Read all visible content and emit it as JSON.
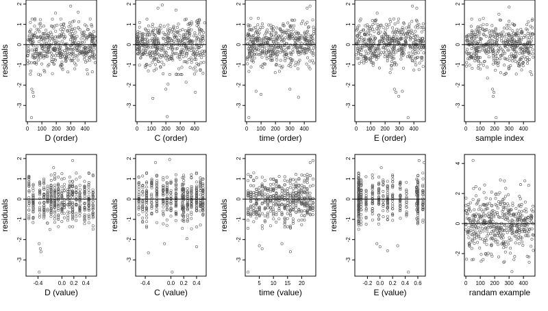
{
  "chart_data": [
    {
      "type": "scatter",
      "xlabel": "D (order)",
      "ylabel": "residuals",
      "xlim": [
        -10,
        480
      ],
      "ylim": [
        -3.8,
        2.2
      ],
      "xticks": [
        0,
        100,
        200,
        300,
        400
      ],
      "yticks": [
        -3,
        -2,
        -1,
        0,
        1,
        2
      ],
      "hline": 0,
      "n": 460,
      "seed": 11,
      "outliers": [
        [
          30,
          -2.2
        ],
        [
          38,
          -2.35
        ],
        [
          42,
          -2.55
        ],
        [
          28,
          -3.6
        ],
        [
          195,
          1.55
        ],
        [
          300,
          1.9
        ],
        [
          352,
          1.6
        ],
        [
          90,
          -1.5
        ],
        [
          120,
          -1.35
        ],
        [
          418,
          -1.45
        ]
      ]
    },
    {
      "type": "scatter",
      "xlabel": "C (order)",
      "ylabel": "residuals",
      "xlim": [
        -10,
        480
      ],
      "ylim": [
        -3.8,
        2.2
      ],
      "xticks": [
        0,
        100,
        200,
        300,
        400
      ],
      "yticks": [
        -3,
        -2,
        -1,
        0,
        1,
        2
      ],
      "hline": 0,
      "n": 460,
      "seed": 23,
      "outliers": [
        [
          210,
          -3.55
        ],
        [
          200,
          -2.2
        ],
        [
          215,
          -1.95
        ],
        [
          340,
          -1.85
        ],
        [
          405,
          -2.35
        ],
        [
          145,
          1.8
        ],
        [
          175,
          1.95
        ],
        [
          270,
          1.7
        ],
        [
          110,
          -2.65
        ]
      ]
    },
    {
      "type": "scatter",
      "xlabel": "time (order)",
      "ylabel": "residuals",
      "xlim": [
        -10,
        480
      ],
      "ylim": [
        -3.8,
        2.2
      ],
      "xticks": [
        0,
        100,
        200,
        300,
        400
      ],
      "yticks": [
        -3,
        -2,
        -1,
        0,
        1,
        2
      ],
      "hline": 0,
      "n": 460,
      "seed": 37,
      "outliers": [
        [
          15,
          -3.6
        ],
        [
          65,
          -2.3
        ],
        [
          100,
          -2.45
        ],
        [
          300,
          -2.2
        ],
        [
          360,
          -2.6
        ],
        [
          420,
          1.8
        ],
        [
          440,
          1.9
        ],
        [
          30,
          1.3
        ]
      ]
    },
    {
      "type": "scatter",
      "xlabel": "E (order)",
      "ylabel": "residuals",
      "xlim": [
        -10,
        480
      ],
      "ylim": [
        -3.8,
        2.2
      ],
      "xticks": [
        0,
        100,
        200,
        300,
        400
      ],
      "yticks": [
        -3,
        -2,
        -1,
        0,
        1,
        2
      ],
      "hline": 0,
      "n": 460,
      "seed": 41,
      "outliers": [
        [
          265,
          -2.2
        ],
        [
          275,
          -2.35
        ],
        [
          295,
          -2.55
        ],
        [
          320,
          -2.3
        ],
        [
          360,
          -3.6
        ],
        [
          145,
          1.55
        ],
        [
          390,
          1.9
        ],
        [
          420,
          1.8
        ]
      ]
    },
    {
      "type": "scatter",
      "xlabel": "sample index",
      "ylabel": "residuals",
      "xlim": [
        -10,
        480
      ],
      "ylim": [
        -3.8,
        2.2
      ],
      "xticks": [
        0,
        100,
        200,
        300,
        400
      ],
      "yticks": [
        -3,
        -2,
        -1,
        0,
        1,
        2
      ],
      "hline": 0,
      "n": 460,
      "seed": 53,
      "outliers": [
        [
          185,
          -2.2
        ],
        [
          195,
          -2.35
        ],
        [
          190,
          -2.55
        ],
        [
          210,
          -3.6
        ],
        [
          300,
          1.85
        ],
        [
          230,
          1.5
        ],
        [
          150,
          -1.65
        ]
      ]
    },
    {
      "type": "scatter",
      "xlabel": "D (value)",
      "ylabel": "residuals",
      "xlim": [
        -0.6,
        0.58
      ],
      "ylim": [
        -3.8,
        2.2
      ],
      "xticks": [
        -0.4,
        0.0,
        0.2,
        0.4
      ],
      "xticklabels": [
        "-0.4",
        "0.0",
        "0.2",
        "0.4"
      ],
      "yticks": [
        -3,
        -2,
        -1,
        0,
        1,
        2
      ],
      "hline": 0,
      "n": 460,
      "seed": 61,
      "columns": [
        -0.55,
        -0.48,
        -0.37,
        -0.3,
        -0.24,
        -0.18,
        -0.12,
        -0.06,
        0.0,
        0.04,
        0.1,
        0.13,
        0.18,
        0.24,
        0.3,
        0.38,
        0.45,
        0.52
      ],
      "outliers": [
        [
          -0.38,
          -2.2
        ],
        [
          -0.36,
          -2.45
        ],
        [
          -0.35,
          -2.6
        ],
        [
          -0.38,
          -3.6
        ],
        [
          0.18,
          1.9
        ],
        [
          -0.14,
          1.55
        ],
        [
          -0.2,
          -1.5
        ]
      ]
    },
    {
      "type": "scatter",
      "xlabel": "C (value)",
      "ylabel": "residuals",
      "xlim": [
        -0.55,
        0.55
      ],
      "ylim": [
        -3.8,
        2.2
      ],
      "xticks": [
        -0.4,
        0.0,
        0.2,
        0.4
      ],
      "xticklabels": [
        "-0.4",
        "0.0",
        "0.2",
        "0.4"
      ],
      "yticks": [
        -3,
        -2,
        -1,
        0,
        1,
        2
      ],
      "hline": 0,
      "n": 460,
      "seed": 71,
      "columns": [
        -0.5,
        -0.44,
        -0.38,
        -0.3,
        -0.22,
        -0.12,
        -0.06,
        0.0,
        0.08,
        0.18,
        0.2,
        0.26,
        0.32,
        0.4,
        0.46,
        0.5
      ],
      "outliers": [
        [
          0.02,
          -3.6
        ],
        [
          -0.1,
          -2.2
        ],
        [
          0.25,
          -1.95
        ],
        [
          0.4,
          -2.35
        ],
        [
          -0.24,
          1.8
        ],
        [
          -0.02,
          1.95
        ],
        [
          -0.35,
          -2.65
        ]
      ]
    },
    {
      "type": "scatter",
      "xlabel": "time (value)",
      "ylabel": "residuals",
      "xlim": [
        0,
        25
      ],
      "ylim": [
        -3.8,
        2.2
      ],
      "xticks": [
        5,
        10,
        15,
        20
      ],
      "yticks": [
        -3,
        -2,
        -1,
        0,
        1,
        2
      ],
      "hline": 0,
      "n": 460,
      "seed": 83,
      "columns": [
        1,
        2,
        3,
        4,
        5,
        6,
        7,
        8,
        9,
        10,
        11,
        12,
        13,
        14,
        15,
        16,
        17,
        18,
        19,
        20,
        21,
        22,
        23,
        24
      ],
      "outliers": [
        [
          1,
          -3.6
        ],
        [
          5,
          -2.3
        ],
        [
          6,
          -2.45
        ],
        [
          13,
          -2.2
        ],
        [
          16,
          -2.6
        ],
        [
          23,
          1.8
        ],
        [
          24,
          1.9
        ],
        [
          3,
          1.3
        ]
      ]
    },
    {
      "type": "scatter",
      "xlabel": "E (value)",
      "ylabel": "residuals",
      "xlim": [
        -0.4,
        0.72
      ],
      "ylim": [
        -3.8,
        2.2
      ],
      "xticks": [
        -0.2,
        0.0,
        0.2,
        0.4,
        0.6
      ],
      "xticklabels": [
        "-0.2",
        "0.0",
        "0.2",
        "0.4",
        "0.6"
      ],
      "yticks": [
        -3,
        -2,
        -1,
        0,
        1,
        2
      ],
      "hline": 0,
      "n": 460,
      "seed": 97,
      "columns": [
        -0.34,
        -0.34,
        -0.34,
        -0.34,
        -0.34,
        -0.3,
        -0.22,
        -0.12,
        -0.02,
        0.05,
        0.12,
        0.2,
        0.32,
        0.42,
        0.58,
        0.6,
        0.6,
        0.68
      ],
      "outliers": [
        [
          -0.05,
          -2.2
        ],
        [
          0.0,
          -2.35
        ],
        [
          0.12,
          -2.55
        ],
        [
          0.28,
          -2.3
        ],
        [
          0.45,
          -3.6
        ],
        [
          0.02,
          1.55
        ],
        [
          0.62,
          1.9
        ],
        [
          0.7,
          1.8
        ]
      ]
    },
    {
      "type": "scatter",
      "xlabel": "randam example",
      "ylabel": "",
      "xlim": [
        -10,
        480
      ],
      "ylim": [
        -3.5,
        4.6
      ],
      "xticks": [
        0,
        100,
        200,
        300,
        400
      ],
      "yticks": [
        -2,
        0,
        2,
        4
      ],
      "hline": 0,
      "n": 460,
      "seed": 101,
      "noise": 1.0,
      "outliers": [
        [
          50,
          4.2
        ],
        [
          320,
          -3.2
        ],
        [
          120,
          -2.4
        ],
        [
          240,
          2.9
        ],
        [
          380,
          2.6
        ]
      ]
    }
  ]
}
